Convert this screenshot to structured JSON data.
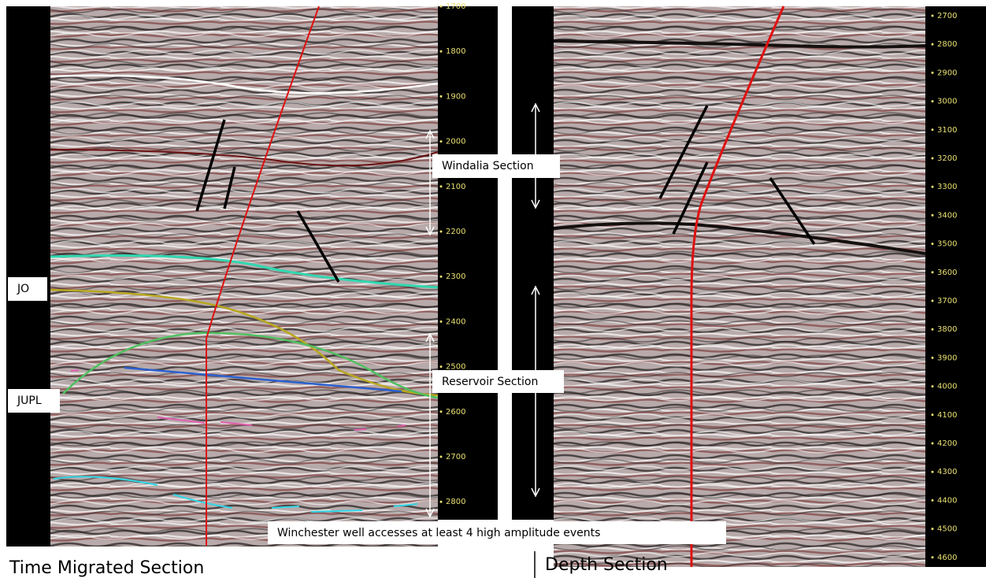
{
  "labels": {
    "jo": "JO",
    "jupl": "JUPL",
    "windalia": "Windalia Section",
    "reservoir": "Reservoir Section",
    "note": "Winchester well accesses at least 4 high amplitude events"
  },
  "time_section": {
    "title": "Time Migrated Section",
    "ticks": [
      1700,
      1800,
      1900,
      2000,
      2100,
      2200,
      2300,
      2400,
      2500,
      2600,
      2700,
      2800
    ]
  },
  "depth_section": {
    "title": "Depth Section",
    "ticks": [
      2700,
      2800,
      2900,
      3000,
      3100,
      3200,
      3300,
      3400,
      3500,
      3600,
      3700,
      3800,
      3900,
      4000,
      4100,
      4200,
      4300,
      4400,
      4500,
      4600
    ]
  }
}
